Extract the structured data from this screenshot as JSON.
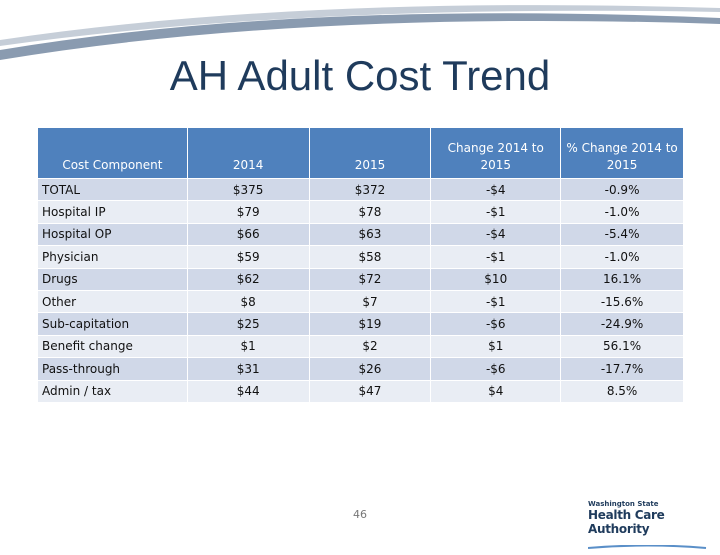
{
  "header": {
    "title": "AH Adult Cost Trend"
  },
  "table": {
    "columns": [
      "Cost Component",
      "2014",
      "2015",
      "Change 2014 to 2015",
      "% Change 2014 to 2015"
    ],
    "rows": [
      [
        "TOTAL",
        "$375",
        "$372",
        "-$4",
        "-0.9%"
      ],
      [
        "Hospital IP",
        "$79",
        "$78",
        "-$1",
        "-1.0%"
      ],
      [
        "Hospital OP",
        "$66",
        "$63",
        "-$4",
        "-5.4%"
      ],
      [
        "Physician",
        "$59",
        "$58",
        "-$1",
        "-1.0%"
      ],
      [
        "Drugs",
        "$62",
        "$72",
        "$10",
        "16.1%"
      ],
      [
        "Other",
        "$8",
        "$7",
        "-$1",
        "-15.6%"
      ],
      [
        "Sub-capitation",
        "$25",
        "$19",
        "-$6",
        "-24.9%"
      ],
      [
        "Benefit change",
        "$1",
        "$2",
        "$1",
        "56.1%"
      ],
      [
        "Pass-through",
        "$31",
        "$26",
        "-$6",
        "-17.7%"
      ],
      [
        "Admin / tax",
        "$44",
        "$47",
        "$4",
        "8.5%"
      ]
    ]
  },
  "footer": {
    "page_number": "46",
    "logo_top": "Washington State",
    "logo_main": "Health Care Authority"
  }
}
